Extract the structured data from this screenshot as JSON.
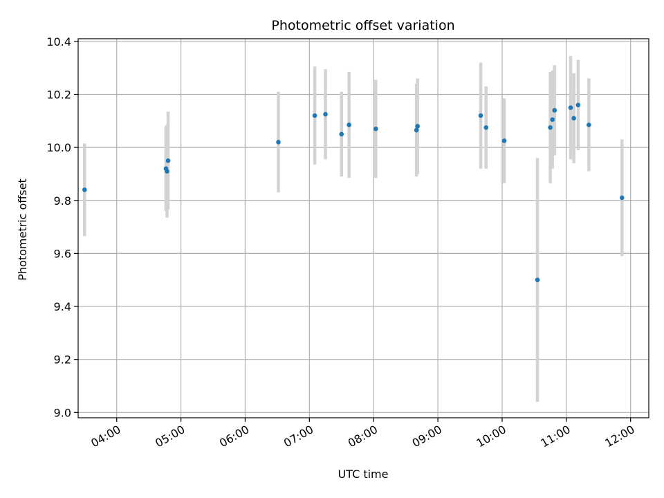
{
  "chart_data": {
    "type": "scatter",
    "title": "Photometric offset variation",
    "xlabel": "UTC time",
    "ylabel": "Photometric offset",
    "x_ticks": [
      "04:00",
      "05:00",
      "06:00",
      "07:00",
      "08:00",
      "09:00",
      "10:00",
      "11:00",
      "12:00"
    ],
    "y_ticks": [
      "9.0",
      "9.2",
      "9.4",
      "9.6",
      "9.8",
      "10.0",
      "10.2",
      "10.4"
    ],
    "xlim": [
      "03:24",
      "12:17"
    ],
    "ylim": [
      8.98,
      10.41
    ],
    "grid": true,
    "colors": {
      "point": "#1f77b4",
      "errorbar": "#d3d3d3",
      "grid": "#b0b0b0"
    },
    "points": [
      {
        "x": "03:30",
        "y": 9.84,
        "err": 0.175
      },
      {
        "x": "04:46",
        "y": 9.92,
        "err": 0.16
      },
      {
        "x": "04:47",
        "y": 9.91,
        "err": 0.175
      },
      {
        "x": "04:48",
        "y": 9.95,
        "err": 0.185
      },
      {
        "x": "06:31",
        "y": 10.02,
        "err": 0.19
      },
      {
        "x": "07:05",
        "y": 10.12,
        "err": 0.185
      },
      {
        "x": "07:15",
        "y": 10.125,
        "err": 0.17
      },
      {
        "x": "07:30",
        "y": 10.05,
        "err": 0.16
      },
      {
        "x": "07:37",
        "y": 10.085,
        "err": 0.2
      },
      {
        "x": "08:02",
        "y": 10.07,
        "err": 0.185
      },
      {
        "x": "08:40",
        "y": 10.065,
        "err": 0.175
      },
      {
        "x": "08:41",
        "y": 10.08,
        "err": 0.18
      },
      {
        "x": "09:40",
        "y": 10.12,
        "err": 0.2
      },
      {
        "x": "09:45",
        "y": 10.075,
        "err": 0.155
      },
      {
        "x": "10:02",
        "y": 10.025,
        "err": 0.16
      },
      {
        "x": "10:33",
        "y": 9.5,
        "err": 0.46
      },
      {
        "x": "10:45",
        "y": 10.075,
        "err": 0.21
      },
      {
        "x": "10:47",
        "y": 10.105,
        "err": 0.185
      },
      {
        "x": "10:49",
        "y": 10.14,
        "err": 0.17
      },
      {
        "x": "11:04",
        "y": 10.15,
        "err": 0.195
      },
      {
        "x": "11:07",
        "y": 10.11,
        "err": 0.17
      },
      {
        "x": "11:11",
        "y": 10.16,
        "err": 0.17
      },
      {
        "x": "11:21",
        "y": 10.085,
        "err": 0.175
      },
      {
        "x": "11:52",
        "y": 9.81,
        "err": 0.22
      }
    ]
  }
}
